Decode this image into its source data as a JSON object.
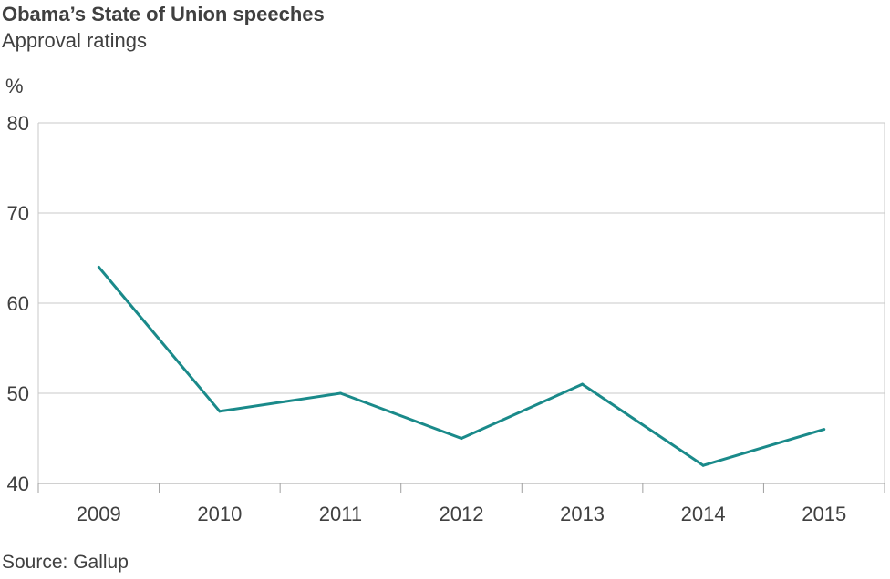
{
  "title": "Obama’s State of Union speeches",
  "subtitle": "Approval ratings",
  "unit": "%",
  "source": "Source: Gallup",
  "chart_data": {
    "type": "line",
    "title": "Obama’s State of Union speeches",
    "subtitle": "Approval ratings",
    "ylabel": "%",
    "xlabel": "",
    "categories": [
      "2009",
      "2010",
      "2011",
      "2012",
      "2013",
      "2014",
      "2015"
    ],
    "series": [
      {
        "values": [
          64,
          48,
          50,
          45,
          51,
          42,
          46
        ]
      }
    ],
    "ylim": [
      40,
      80
    ],
    "yticks": [
      40,
      50,
      60,
      70,
      80
    ],
    "grid": true,
    "legend": "none",
    "line_color": "#1a8a8a",
    "grid_color": "#c8c8c8"
  }
}
